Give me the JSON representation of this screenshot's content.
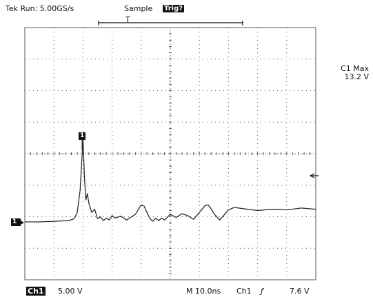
{
  "header": {
    "status": "Tek Run: 5.00GS/s",
    "mode": "Sample",
    "trig_badge": "Trig?",
    "trigger_marker": "T"
  },
  "readout": {
    "measure_label": "C1 Max",
    "measure_value": "13.2 V"
  },
  "markers": {
    "cursor_marker": "1",
    "channel_marker": "1"
  },
  "footer": {
    "channel_badge": "Ch1",
    "volts_per_div": "5.00 V",
    "timebase": "M 10.0ns",
    "trigger_source": "Ch1",
    "trigger_slope": "ƒ",
    "trigger_level": "7.6 V"
  },
  "colors": {
    "trace": "#2a2a2a",
    "grid": "#555555",
    "background": "#ffffff"
  },
  "chart_data": {
    "type": "line",
    "time_per_div_ns": 10,
    "volts_per_div": 5,
    "x_divisions": 10,
    "y_divisions": 8,
    "series": [
      {
        "x_ns": [
          0,
          5,
          10,
          15,
          17,
          18,
          19,
          20,
          20.5,
          21,
          21.5,
          22,
          23,
          24,
          25,
          26,
          27,
          28,
          29,
          30,
          31,
          33,
          35,
          38,
          40,
          41,
          42,
          43,
          44,
          45,
          46,
          47,
          48,
          50,
          52,
          54,
          56,
          58,
          60,
          62,
          63,
          64,
          65,
          67,
          70,
          72,
          75,
          80,
          85,
          90,
          95,
          100
        ],
        "y_v": [
          0,
          0,
          0.1,
          0.2,
          0.5,
          1.5,
          5,
          13.2,
          7,
          3.5,
          4.5,
          3,
          1.5,
          2,
          0.5,
          0.8,
          0.2,
          0.6,
          0.3,
          1,
          0.6,
          0.9,
          0.3,
          1.2,
          2.7,
          2.5,
          1.5,
          0.5,
          0.1,
          0.6,
          0.2,
          0.6,
          0.3,
          1.2,
          0.7,
          1.3,
          1,
          0.4,
          1.5,
          2.6,
          2.7,
          2.1,
          1.3,
          0.3,
          1.9,
          2.3,
          2.1,
          1.8,
          2,
          1.9,
          2.2,
          2
        ]
      }
    ],
    "ylim": [
      -20,
      20
    ],
    "xlim": [
      0,
      100
    ],
    "grid": true
  }
}
